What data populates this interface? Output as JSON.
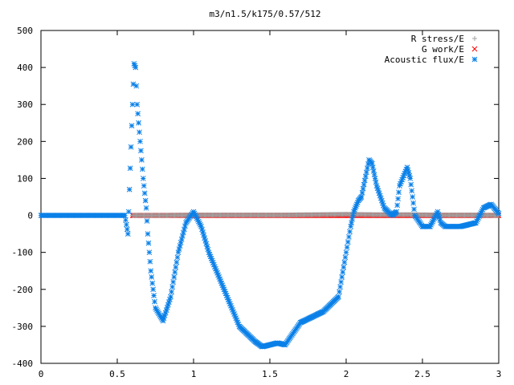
{
  "chart_data": {
    "type": "scatter",
    "title": "m3/n1.5/k175/0.57/512",
    "xlabel": "",
    "ylabel": "",
    "xlim": [
      0,
      3
    ],
    "ylim": [
      -400,
      500
    ],
    "xticks": [
      0,
      0.5,
      1,
      1.5,
      2,
      2.5,
      3
    ],
    "xtick_labels": [
      "0",
      "0.5",
      "1",
      "1.5",
      "2",
      "2.5",
      "3"
    ],
    "yticks": [
      -400,
      -300,
      -200,
      -100,
      0,
      100,
      200,
      300,
      400,
      500
    ],
    "ytick_labels": [
      "-400",
      "-300",
      "-200",
      "-100",
      "0",
      "100",
      "200",
      "300",
      "400",
      "500"
    ],
    "grid": false,
    "legend_position": "top-right",
    "series": [
      {
        "name": "R stress/E",
        "marker": "+",
        "color": "#a0a0a0",
        "x": [
          0.6,
          0.8,
          1.0,
          1.2,
          1.4,
          1.6,
          1.8,
          2.0,
          2.2,
          2.4,
          2.6,
          2.8,
          3.0
        ],
        "y": [
          0,
          0,
          1,
          1,
          1,
          1,
          2,
          3,
          2,
          2,
          1,
          1,
          0
        ]
      },
      {
        "name": "G work/E",
        "marker": "x",
        "color": "#ff0000",
        "x": [
          0.6,
          0.8,
          1.0,
          1.2,
          1.4,
          1.6,
          1.8,
          2.0,
          2.2,
          2.4,
          2.6,
          2.8,
          3.0
        ],
        "y": [
          0,
          0,
          0,
          0,
          0,
          0,
          0,
          0,
          0,
          0,
          0,
          0,
          0
        ]
      },
      {
        "name": "Acoustic flux/E",
        "marker": "*",
        "color": "#0a80e8",
        "x": [
          0,
          0.55,
          0.57,
          0.58,
          0.6,
          0.61,
          0.62,
          0.63,
          0.65,
          0.67,
          0.69,
          0.7,
          0.72,
          0.75,
          0.8,
          0.85,
          0.9,
          0.95,
          1.0,
          1.05,
          1.1,
          1.15,
          1.2,
          1.25,
          1.3,
          1.35,
          1.4,
          1.45,
          1.5,
          1.55,
          1.6,
          1.65,
          1.7,
          1.75,
          1.8,
          1.85,
          1.9,
          1.95,
          2.0,
          2.03,
          2.05,
          2.08,
          2.1,
          2.15,
          2.17,
          2.2,
          2.25,
          2.3,
          2.33,
          2.35,
          2.4,
          2.42,
          2.45,
          2.5,
          2.55,
          2.6,
          2.62,
          2.65,
          2.7,
          2.75,
          2.8,
          2.85,
          2.9,
          2.95,
          3.0
        ],
        "y": [
          0,
          0,
          -50,
          70,
          300,
          410,
          400,
          300,
          200,
          100,
          20,
          -50,
          -150,
          -250,
          -285,
          -220,
          -100,
          -20,
          10,
          -30,
          -100,
          -150,
          -200,
          -250,
          -300,
          -320,
          -340,
          -355,
          -350,
          -345,
          -350,
          -320,
          -290,
          -280,
          -270,
          -260,
          -240,
          -220,
          -100,
          -30,
          10,
          40,
          50,
          150,
          140,
          80,
          20,
          0,
          10,
          80,
          130,
          100,
          0,
          -30,
          -30,
          10,
          -20,
          -30,
          -30,
          -30,
          -25,
          -20,
          20,
          30,
          5
        ]
      }
    ]
  }
}
